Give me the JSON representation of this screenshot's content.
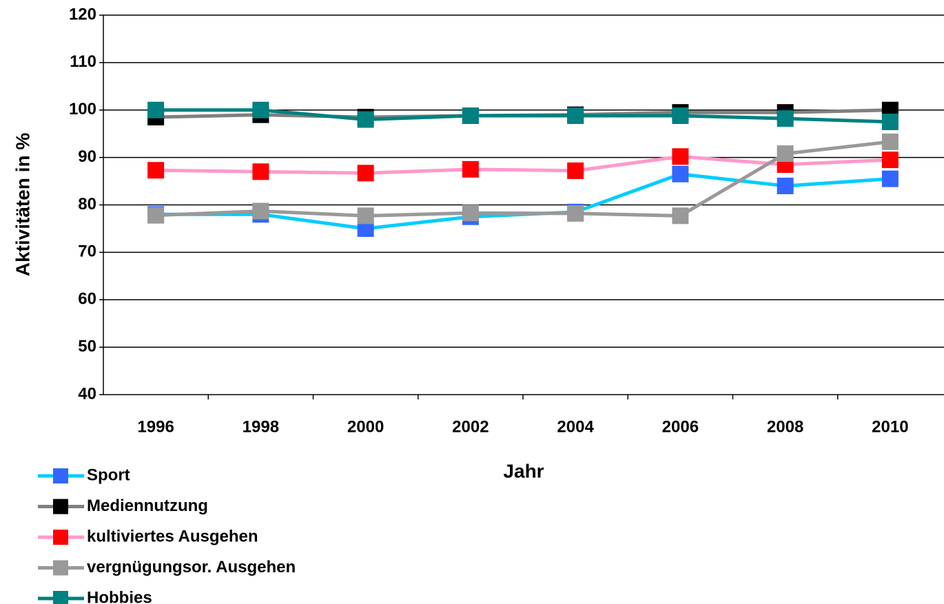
{
  "chart_data": {
    "type": "line",
    "x_label": "Jahr",
    "y_label": "Aktivitäten in %",
    "categories": [
      "1996",
      "1998",
      "2000",
      "2002",
      "2004",
      "2006",
      "2008",
      "2010"
    ],
    "series": [
      {
        "name": "Sport",
        "color": "#00ccff",
        "marker_color": "#3366ff",
        "values": [
          78,
          78,
          75,
          77.5,
          78.5,
          86.5,
          84,
          85.5
        ]
      },
      {
        "name": "Mediennutzung",
        "color": "#808080",
        "marker_color": "#000000",
        "values": [
          98.5,
          99,
          98.5,
          98.8,
          99,
          99.5,
          99.5,
          100
        ]
      },
      {
        "name": "kultiviertes Ausgehen",
        "color": "#ff99cc",
        "marker_color": "#ff0000",
        "values": [
          87.3,
          87,
          86.7,
          87.5,
          87.2,
          90.2,
          88.5,
          89.5
        ]
      },
      {
        "name": "vergnügungsor. Ausgehen",
        "color": "#999999",
        "marker_color": "#999999",
        "values": [
          77.8,
          78.7,
          77.7,
          78.3,
          78.2,
          77.7,
          90.8,
          93.3
        ]
      },
      {
        "name": "Hobbies",
        "color": "#008080",
        "marker_color": "#008080",
        "values": [
          100,
          100,
          98,
          98.8,
          98.8,
          98.8,
          98.2,
          97.5
        ]
      }
    ],
    "ylim": [
      40,
      120
    ],
    "yticks": [
      40,
      50,
      60,
      70,
      80,
      90,
      100,
      110,
      120
    ],
    "grid": true
  }
}
